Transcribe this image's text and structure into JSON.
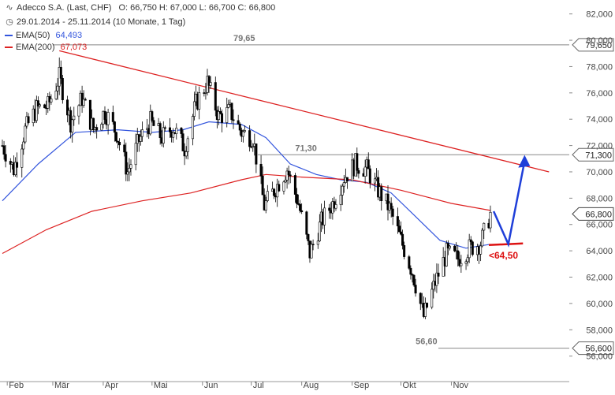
{
  "header": {
    "title": "Adecco S.A. (Last, CHF)",
    "ohlc": "O: 66,750  H: 67,000  L: 66,700  C: 66,800",
    "range": "29.01.2014 - 25.11.2014 (10 Monate, 1 Tag)",
    "ema50_label": "EMA(50)",
    "ema50_value": "64,493",
    "ema200_label": "EMA(200)",
    "ema200_value": "67,073"
  },
  "colors": {
    "candle": "#000000",
    "ema50": "#3355dd",
    "ema200": "#dd2222",
    "trendline": "#dd2222",
    "level": "#888888",
    "arrow": "#1f3fd9",
    "support": "#dd1111",
    "grid": "#dddddd"
  },
  "chart_data": {
    "type": "candlestick",
    "title": "Adecco S.A. (Last, CHF)",
    "y_ticks": [
      "56,000",
      "58,000",
      "60,000",
      "62,000",
      "64,000",
      "66,000",
      "68,000",
      "70,000",
      "72,000",
      "74,000",
      "76,000",
      "78,000",
      "80,000",
      "82,000"
    ],
    "y_tick_values": [
      56,
      58,
      60,
      62,
      64,
      66,
      68,
      70,
      72,
      74,
      76,
      78,
      80,
      82
    ],
    "ylim": [
      55.2,
      82.4
    ],
    "x_ticks": [
      "Feb",
      "Mär",
      "Apr",
      "Mai",
      "Jun",
      "Jul",
      "Aug",
      "Sep",
      "Okt",
      "Nov"
    ],
    "x_tick_dates": [
      "2014-02-01",
      "2014-03-01",
      "2014-04-01",
      "2014-05-01",
      "2014-06-01",
      "2014-07-01",
      "2014-08-01",
      "2014-09-01",
      "2014-10-01",
      "2014-11-01"
    ],
    "x_range": [
      "2014-01-29",
      "2014-11-25"
    ],
    "grid": false,
    "price_path": [
      {
        "date": "2014-01-29",
        "close": 72.0
      },
      {
        "date": "2014-02-05",
        "close": 70.2
      },
      {
        "date": "2014-02-12",
        "close": 73.2
      },
      {
        "date": "2014-02-19",
        "close": 74.8
      },
      {
        "date": "2014-02-26",
        "close": 75.0
      },
      {
        "date": "2014-03-05",
        "close": 77.2
      },
      {
        "date": "2014-03-12",
        "close": 73.8
      },
      {
        "date": "2014-03-19",
        "close": 75.6
      },
      {
        "date": "2014-03-26",
        "close": 73.2
      },
      {
        "date": "2014-04-02",
        "close": 74.6
      },
      {
        "date": "2014-04-09",
        "close": 73.0
      },
      {
        "date": "2014-04-16",
        "close": 70.0
      },
      {
        "date": "2014-04-23",
        "close": 72.4
      },
      {
        "date": "2014-04-30",
        "close": 73.8
      },
      {
        "date": "2014-05-07",
        "close": 72.6
      },
      {
        "date": "2014-05-14",
        "close": 73.4
      },
      {
        "date": "2014-05-21",
        "close": 71.8
      },
      {
        "date": "2014-05-28",
        "close": 75.2
      },
      {
        "date": "2014-06-04",
        "close": 76.8
      },
      {
        "date": "2014-06-11",
        "close": 74.2
      },
      {
        "date": "2014-06-18",
        "close": 74.6
      },
      {
        "date": "2014-06-25",
        "close": 73.0
      },
      {
        "date": "2014-07-02",
        "close": 72.6
      },
      {
        "date": "2014-07-09",
        "close": 67.4
      },
      {
        "date": "2014-07-16",
        "close": 68.8
      },
      {
        "date": "2014-07-23",
        "close": 70.2
      },
      {
        "date": "2014-07-30",
        "close": 67.6
      },
      {
        "date": "2014-08-06",
        "close": 63.8
      },
      {
        "date": "2014-08-13",
        "close": 66.2
      },
      {
        "date": "2014-08-20",
        "close": 67.6
      },
      {
        "date": "2014-08-27",
        "close": 69.6
      },
      {
        "date": "2014-09-03",
        "close": 70.6
      },
      {
        "date": "2014-09-10",
        "close": 70.2
      },
      {
        "date": "2014-09-17",
        "close": 68.6
      },
      {
        "date": "2014-09-24",
        "close": 67.2
      },
      {
        "date": "2014-10-01",
        "close": 64.8
      },
      {
        "date": "2014-10-08",
        "close": 62.4
      },
      {
        "date": "2014-10-15",
        "close": 59.0
      },
      {
        "date": "2014-10-22",
        "close": 61.6
      },
      {
        "date": "2014-10-29",
        "close": 63.8
      },
      {
        "date": "2014-11-05",
        "close": 63.4
      },
      {
        "date": "2014-11-12",
        "close": 64.2
      },
      {
        "date": "2014-11-19",
        "close": 64.6
      },
      {
        "date": "2014-11-25",
        "close": 66.8
      }
    ],
    "series": [
      {
        "name": "EMA(50)",
        "points": [
          {
            "date": "2014-01-29",
            "value": 67.8
          },
          {
            "date": "2014-02-20",
            "value": 70.6
          },
          {
            "date": "2014-03-15",
            "value": 73.0
          },
          {
            "date": "2014-04-10",
            "value": 73.2
          },
          {
            "date": "2014-05-01",
            "value": 73.0
          },
          {
            "date": "2014-05-20",
            "value": 73.2
          },
          {
            "date": "2014-06-05",
            "value": 73.8
          },
          {
            "date": "2014-06-25",
            "value": 73.6
          },
          {
            "date": "2014-07-10",
            "value": 72.6
          },
          {
            "date": "2014-07-25",
            "value": 70.6
          },
          {
            "date": "2014-08-10",
            "value": 69.8
          },
          {
            "date": "2014-08-25",
            "value": 69.4
          },
          {
            "date": "2014-09-10",
            "value": 69.2
          },
          {
            "date": "2014-09-25",
            "value": 68.4
          },
          {
            "date": "2014-10-10",
            "value": 66.6
          },
          {
            "date": "2014-10-25",
            "value": 64.8
          },
          {
            "date": "2014-11-10",
            "value": 64.2
          },
          {
            "date": "2014-11-25",
            "value": 64.5
          }
        ]
      },
      {
        "name": "EMA(200)",
        "points": [
          {
            "date": "2014-01-29",
            "value": 63.8
          },
          {
            "date": "2014-02-25",
            "value": 65.6
          },
          {
            "date": "2014-03-25",
            "value": 67.0
          },
          {
            "date": "2014-04-25",
            "value": 67.8
          },
          {
            "date": "2014-05-25",
            "value": 68.4
          },
          {
            "date": "2014-06-25",
            "value": 69.4
          },
          {
            "date": "2014-07-10",
            "value": 69.8
          },
          {
            "date": "2014-08-01",
            "value": 69.6
          },
          {
            "date": "2014-09-01",
            "value": 69.4
          },
          {
            "date": "2014-10-01",
            "value": 68.6
          },
          {
            "date": "2014-11-01",
            "value": 67.6
          },
          {
            "date": "2014-11-25",
            "value": 67.07
          }
        ]
      }
    ],
    "trendline": {
      "start": {
        "date": "2014-03-05",
        "value": 79.2
      },
      "end": {
        "date": "2014-12-31",
        "value": 70.0
      }
    },
    "levels": [
      {
        "value": 79.65,
        "label": "79,65",
        "axis_label": "79,650"
      },
      {
        "value": 71.3,
        "label": "71,30",
        "axis_label": "71,300"
      },
      {
        "value": 56.6,
        "label": "56,60",
        "axis_label": "56,600"
      }
    ],
    "current": {
      "value": 66.8,
      "axis_label": "66,800"
    },
    "support": {
      "value": 64.5,
      "label": "<64,50"
    },
    "projection": [
      {
        "date": "2014-11-27",
        "value": 67.0
      },
      {
        "date": "2014-12-06",
        "value": 64.5
      },
      {
        "date": "2014-12-16",
        "value": 70.8
      }
    ]
  }
}
